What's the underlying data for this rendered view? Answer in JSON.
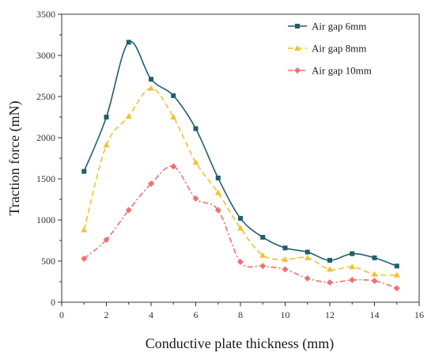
{
  "chart_data": {
    "type": "line",
    "title": "",
    "xlabel": "Conductive plate thickness (mm)",
    "ylabel": "Traction force (mN)",
    "xlim": [
      0,
      16
    ],
    "ylim": [
      0,
      3500
    ],
    "xticks": [
      0,
      2,
      4,
      6,
      8,
      10,
      12,
      14,
      16
    ],
    "yticks": [
      0,
      500,
      1000,
      1500,
      2000,
      2500,
      3000,
      3500
    ],
    "grid": false,
    "legend_position": "top-right",
    "x": [
      1,
      2,
      3,
      4,
      5,
      6,
      7,
      8,
      9,
      10,
      11,
      12,
      13,
      14,
      15
    ],
    "series": [
      {
        "name": "Air gap 6mm",
        "color": "#1f5f6f",
        "line_style": "solid",
        "marker": "square",
        "values": [
          1590,
          2250,
          3160,
          2710,
          2510,
          2110,
          1510,
          1020,
          790,
          660,
          610,
          510,
          590,
          540,
          440
        ]
      },
      {
        "name": "Air gap 8mm",
        "color": "#f3c12f",
        "line_style": "dashed",
        "marker": "triangle",
        "values": [
          880,
          1910,
          2260,
          2600,
          2250,
          1700,
          1330,
          900,
          570,
          520,
          540,
          400,
          430,
          340,
          330
        ]
      },
      {
        "name": "Air gap 10mm",
        "color": "#f07070",
        "line_style": "dashdot",
        "marker": "diamond",
        "values": [
          530,
          760,
          1120,
          1440,
          1650,
          1260,
          1120,
          490,
          440,
          400,
          290,
          240,
          270,
          260,
          170
        ]
      }
    ]
  }
}
